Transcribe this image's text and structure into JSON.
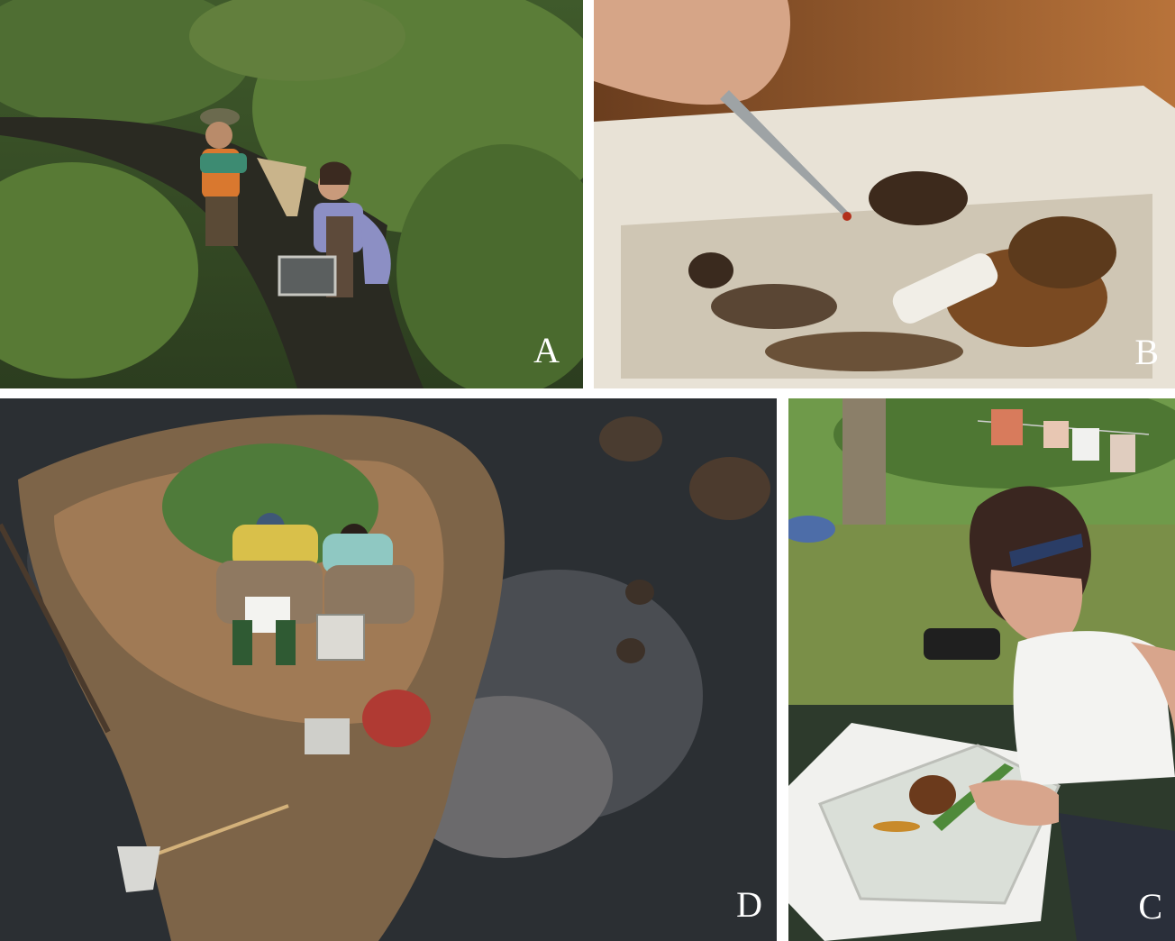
{
  "figure": {
    "panels": [
      {
        "letter": "A"
      },
      {
        "letter": "B"
      },
      {
        "letter": "D"
      },
      {
        "letter": "C"
      }
    ]
  }
}
